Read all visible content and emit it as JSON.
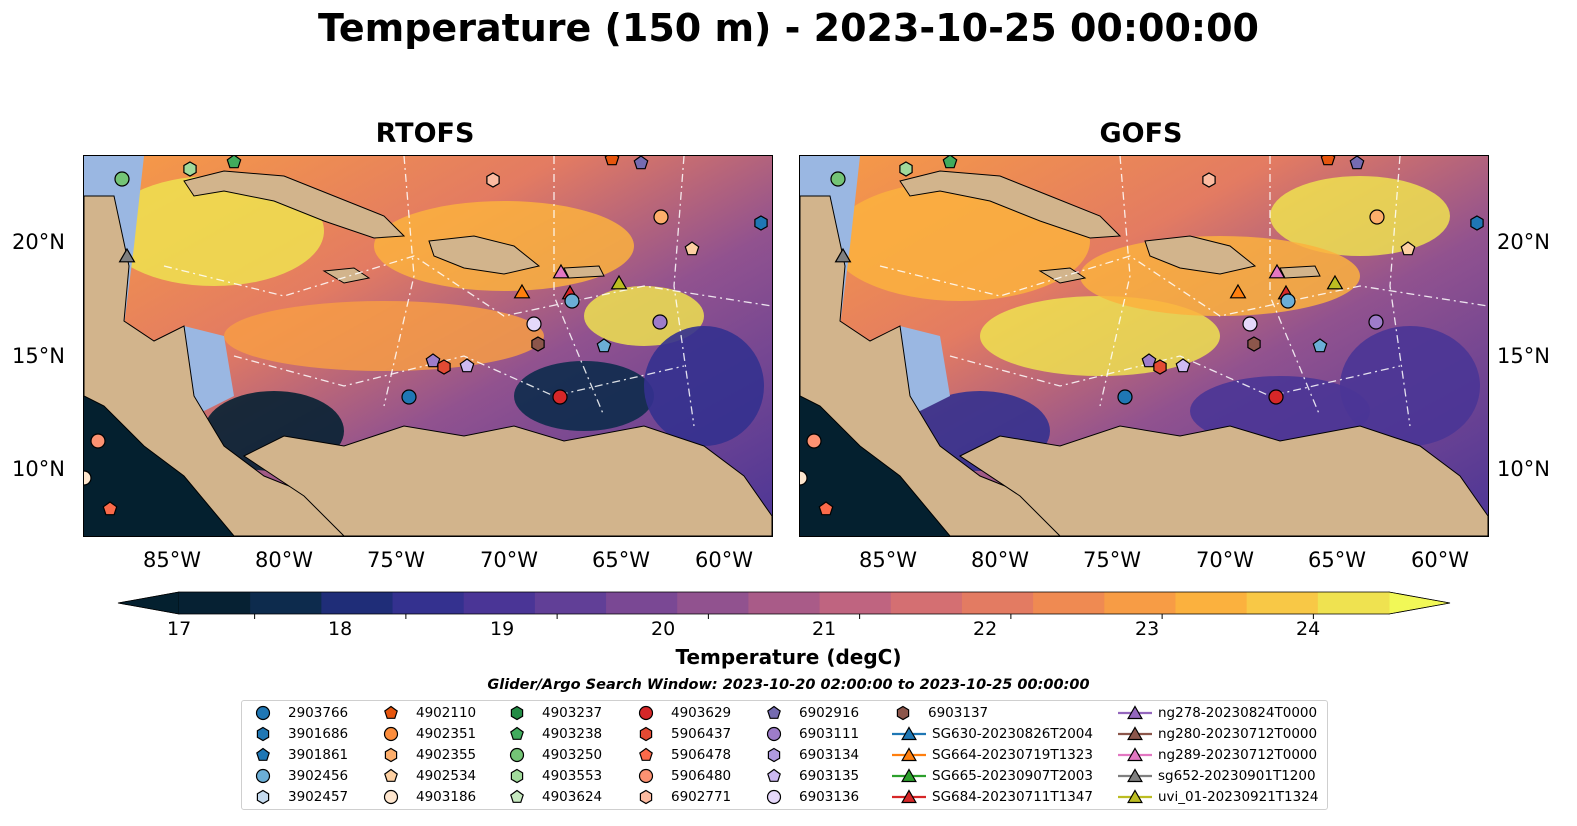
{
  "title": "Temperature (150 m) - 2023-10-25 00:00:00",
  "panels": [
    {
      "title": "RTOFS"
    },
    {
      "title": "GOFS"
    }
  ],
  "axes": {
    "lon_labels": [
      "85°W",
      "80°W",
      "75°W",
      "70°W",
      "65°W",
      "60°W"
    ],
    "lat_labels": [
      "20°N",
      "15°N",
      "10°N"
    ]
  },
  "colorbar": {
    "label": "Temperature (degC)",
    "ticks": [
      "17",
      "18",
      "19",
      "20",
      "21",
      "22",
      "23",
      "24"
    ],
    "min": 16.5,
    "max": 24.5,
    "colors": [
      "#062133",
      "#0d2b4d",
      "#1f2d78",
      "#34318f",
      "#4a3596",
      "#613f97",
      "#7a4894",
      "#91528f",
      "#a95b88",
      "#bf6480",
      "#d46f72",
      "#e37b62",
      "#ef8a52",
      "#f79c45",
      "#fbb13e",
      "#f8c846",
      "#efe250"
    ],
    "extend_low_color": "#04202f",
    "extend_high_color": "#f1f857"
  },
  "colors": {
    "land": "#d2b48c",
    "shelf": "#9ab7e2",
    "deep_pacific": "#04202f"
  },
  "search_window": "Glider/Argo Search Window: 2023-10-20 02:00:00 to 2023-10-25 00:00:00",
  "legend": [
    {
      "label": "2903766",
      "marker": "circle",
      "color": "#1f77b4"
    },
    {
      "label": "3901686",
      "marker": "hexagon",
      "color": "#1f77b4"
    },
    {
      "label": "3901861",
      "marker": "pentagon",
      "color": "#1f77b4"
    },
    {
      "label": "3902456",
      "marker": "circle",
      "color": "#6baed6"
    },
    {
      "label": "3902457",
      "marker": "hexagon",
      "color": "#c6dbef"
    },
    {
      "label": "4902110",
      "marker": "pentagon",
      "color": "#e6550d"
    },
    {
      "label": "4902351",
      "marker": "circle",
      "color": "#fd8d3c"
    },
    {
      "label": "4902355",
      "marker": "hexagon",
      "color": "#fdae6b"
    },
    {
      "label": "4902534",
      "marker": "pentagon",
      "color": "#fdd0a2"
    },
    {
      "label": "4903186",
      "marker": "circle",
      "color": "#fee6ce"
    },
    {
      "label": "4903237",
      "marker": "hexagon",
      "color": "#238b45"
    },
    {
      "label": "4903238",
      "marker": "pentagon",
      "color": "#41ab5d"
    },
    {
      "label": "4903250",
      "marker": "circle",
      "color": "#74c476"
    },
    {
      "label": "4903553",
      "marker": "hexagon",
      "color": "#a1d99b"
    },
    {
      "label": "4903624",
      "marker": "pentagon",
      "color": "#c7e9c0"
    },
    {
      "label": "4903629",
      "marker": "circle",
      "color": "#d62728"
    },
    {
      "label": "5906437",
      "marker": "hexagon",
      "color": "#e34a33"
    },
    {
      "label": "5906478",
      "marker": "pentagon",
      "color": "#fb6a4a"
    },
    {
      "label": "5906480",
      "marker": "circle",
      "color": "#fc9272"
    },
    {
      "label": "6902771",
      "marker": "hexagon",
      "color": "#fcbba1"
    },
    {
      "label": "6902916",
      "marker": "pentagon",
      "color": "#756bb1"
    },
    {
      "label": "6903111",
      "marker": "circle",
      "color": "#9e7cc9"
    },
    {
      "label": "6903134",
      "marker": "hexagon",
      "color": "#b09be0"
    },
    {
      "label": "6903135",
      "marker": "pentagon",
      "color": "#cdb9f2"
    },
    {
      "label": "6903136",
      "marker": "circle",
      "color": "#e5d8fa"
    },
    {
      "label": "6903137",
      "marker": "hexagon",
      "color": "#8c564b"
    },
    {
      "label": "SG630-20230826T2004",
      "marker": "triangle-line",
      "color": "#1f77b4"
    },
    {
      "label": "SG664-20230719T1323",
      "marker": "triangle-line",
      "color": "#ff7f0e"
    },
    {
      "label": "SG665-20230907T2003",
      "marker": "triangle-line",
      "color": "#2ca02c"
    },
    {
      "label": "SG684-20230711T1347",
      "marker": "triangle-line",
      "color": "#d62728"
    },
    {
      "label": "ng278-20230824T0000",
      "marker": "triangle-line",
      "color": "#9467bd"
    },
    {
      "label": "ng280-20230712T0000",
      "marker": "triangle-line",
      "color": "#8c564b"
    },
    {
      "label": "ng289-20230712T0000",
      "marker": "triangle-line",
      "color": "#e377c2"
    },
    {
      "label": "sg652-20230901T1200",
      "marker": "triangle-line",
      "color": "#7f7f7f"
    },
    {
      "label": "uvi_01-20230921T1324",
      "marker": "triangle-line",
      "color": "#bcbd22"
    }
  ]
}
